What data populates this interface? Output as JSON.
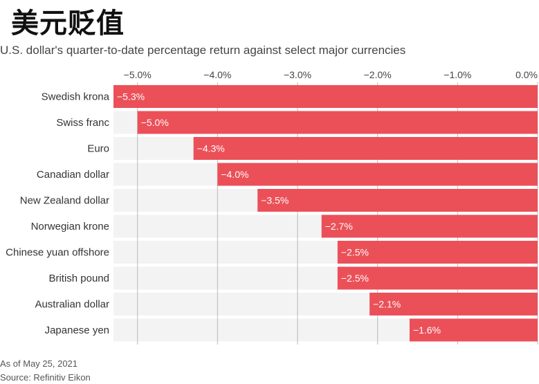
{
  "title": "美元贬值",
  "subtitle": "U.S. dollar's quarter-to-date percentage return against select major currencies",
  "footer": {
    "as_of": "As of May 25, 2021",
    "source": "Source: Refinitiv Eikon"
  },
  "colors": {
    "bar": "#eb5058",
    "track": "#f3f3f3",
    "grid": "#b8b8b8"
  },
  "chart_data": {
    "type": "bar",
    "orientation": "horizontal",
    "categories": [
      "Swedish krona",
      "Swiss franc",
      "Euro",
      "Canadian dollar",
      "New Zealand dollar",
      "Norwegian krone",
      "Chinese yuan offshore",
      "British pound",
      "Australian dollar",
      "Japanese yen"
    ],
    "values": [
      -5.3,
      -5.0,
      -4.3,
      -4.0,
      -3.5,
      -2.7,
      -2.5,
      -2.5,
      -2.1,
      -1.6
    ],
    "value_labels": [
      "−5.3%",
      "−5.0%",
      "−4.3%",
      "−4.0%",
      "−3.5%",
      "−2.7%",
      "−2.5%",
      "−2.5%",
      "−2.1%",
      "−1.6%"
    ],
    "x_ticks": [
      -5.0,
      -4.0,
      -3.0,
      -2.0,
      -1.0,
      0.0
    ],
    "x_tick_labels": [
      "−5.0%",
      "−4.0%",
      "−3.0%",
      "−2.0%",
      "−1.0%",
      "0.0%"
    ],
    "xlim": [
      -5.3,
      0.0
    ],
    "grid": true
  }
}
